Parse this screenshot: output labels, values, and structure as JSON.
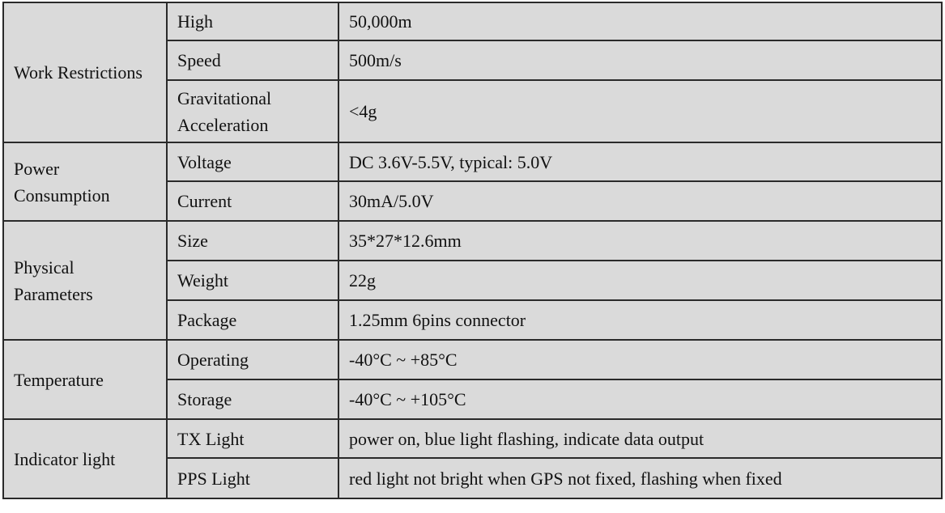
{
  "groups": [
    {
      "category": "Work Restrictions",
      "rows": [
        {
          "param": "High",
          "value": "50,000m"
        },
        {
          "param": "Speed",
          "value": "500m/s"
        },
        {
          "param": "Gravitational Acceleration",
          "value": "<4g"
        }
      ]
    },
    {
      "category": "Power Consumption",
      "rows": [
        {
          "param": "Voltage",
          "value": "DC 3.6V-5.5V, typical: 5.0V"
        },
        {
          "param": "Current",
          "value": "30mA/5.0V"
        }
      ]
    },
    {
      "category": "Physical Parameters",
      "rows": [
        {
          "param": "Size",
          "value": "35*27*12.6mm"
        },
        {
          "param": "Weight",
          "value": "22g"
        },
        {
          "param": "Package",
          "value": "1.25mm 6pins connector"
        }
      ]
    },
    {
      "category": "Temperature",
      "rows": [
        {
          "param": "Operating",
          "value": "-40°C ~ +85°C"
        },
        {
          "param": "Storage",
          "value": "-40°C ~ +105°C"
        }
      ]
    },
    {
      "category": "Indicator light",
      "rows": [
        {
          "param": "TX Light",
          "value": "power on, blue light flashing, indicate data output"
        },
        {
          "param": "PPS Light",
          "value": "red light not bright when GPS not fixed, flashing when fixed"
        }
      ]
    }
  ]
}
